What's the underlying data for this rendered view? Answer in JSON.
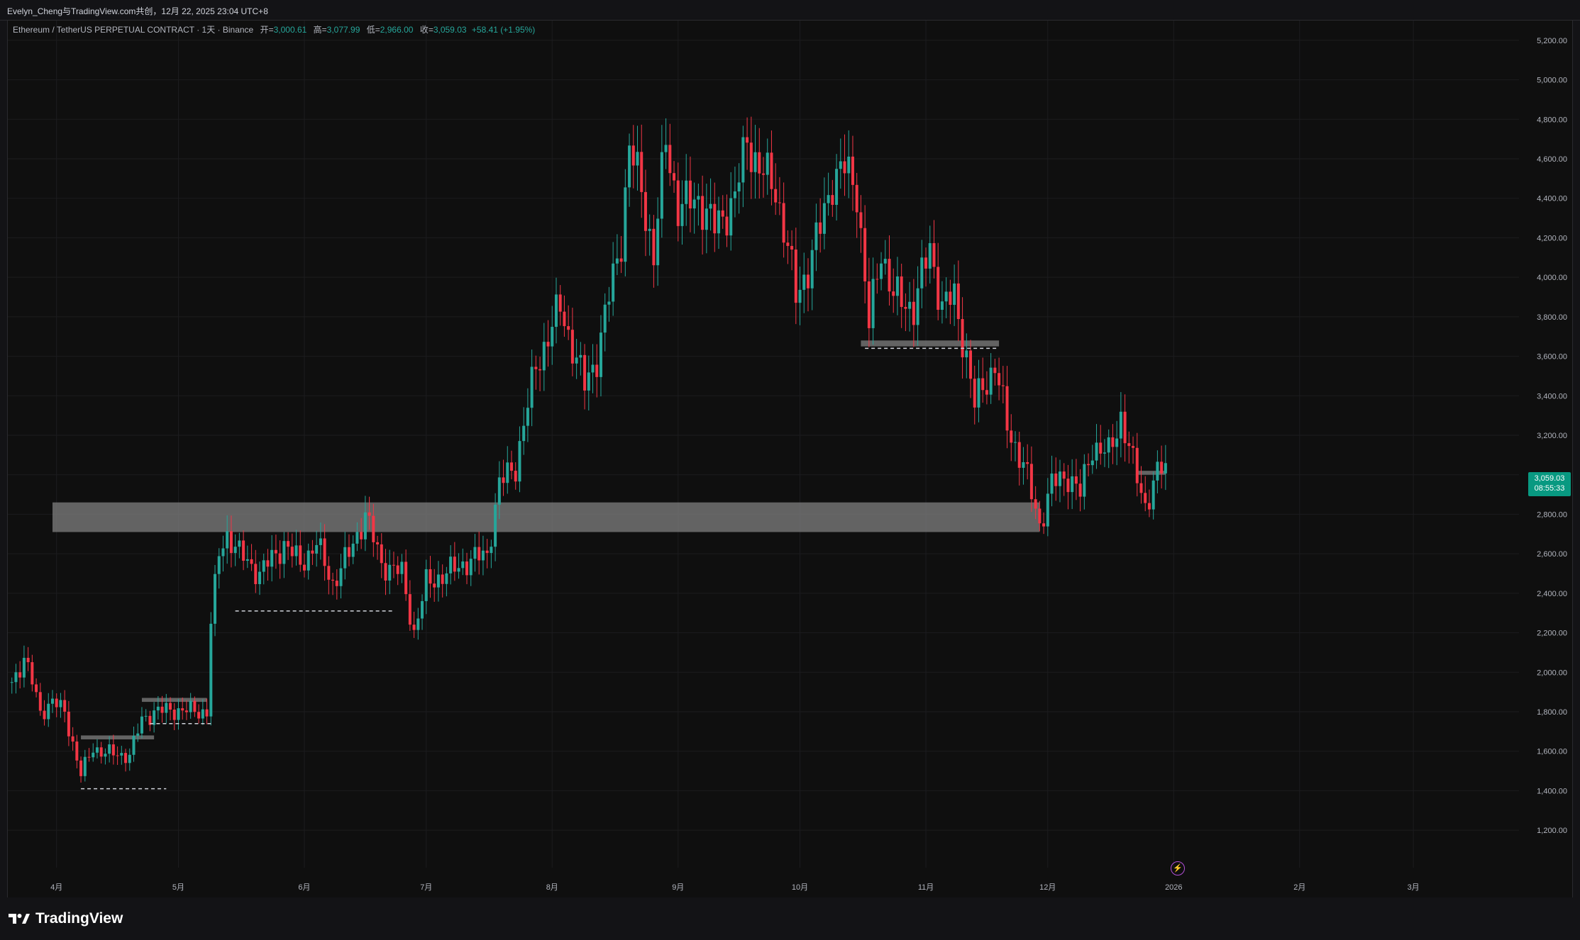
{
  "header": {
    "shared_by": "Evelyn_Cheng与TradingView.com共创，12月 22, 2025 23:04 UTC+8"
  },
  "legend": {
    "symbol": "Ethereum / TetherUS PERPETUAL CONTRACT · 1天 · Binance",
    "open_label": "开=",
    "open": "3,000.61",
    "high_label": "高=",
    "high": "3,077.99",
    "low_label": "低=",
    "low": "2,966.00",
    "close_label": "收=",
    "close": "3,059.03",
    "change": "+58.41 (+1.95%)"
  },
  "price_tag": {
    "price": "3,059.03",
    "countdown": "08:55:33"
  },
  "colors": {
    "up": "#26a69a",
    "down": "#f23645",
    "background": "#0f0f0f",
    "zone": "#808080"
  },
  "icons": {
    "flash": "lightning-circle-icon",
    "logo": "tradingview-logo-icon"
  },
  "brand": {
    "name": "TradingView"
  },
  "chart_data": {
    "type": "candlestick",
    "x_axis": {
      "ticks": [
        {
          "label": "4月",
          "day": 0
        },
        {
          "label": "5月",
          "day": 30
        },
        {
          "label": "6月",
          "day": 61
        },
        {
          "label": "7月",
          "day": 91
        },
        {
          "label": "8月",
          "day": 122
        },
        {
          "label": "9月",
          "day": 153
        },
        {
          "label": "10月",
          "day": 183
        },
        {
          "label": "11月",
          "day": 214
        },
        {
          "label": "12月",
          "day": 244
        },
        {
          "label": "2026",
          "day": 275
        },
        {
          "label": "2月",
          "day": 306
        },
        {
          "label": "3月",
          "day": 334
        }
      ],
      "range": [
        -12,
        360
      ]
    },
    "y_axis": {
      "ticks": [
        "1,200.00",
        "1,400.00",
        "1,600.00",
        "1,800.00",
        "2,000.00",
        "2,200.00",
        "2,400.00",
        "2,600.00",
        "2,800.00",
        "3,000.00",
        "3,200.00",
        "3,400.00",
        "3,600.00",
        "3,800.00",
        "4,000.00",
        "4,200.00",
        "4,400.00",
        "4,600.00",
        "4,800.00",
        "5,000.00",
        "5,200.00"
      ],
      "range": [
        1100,
        5300
      ]
    },
    "anchors": [
      {
        "day": -11,
        "close": 1950
      },
      {
        "day": -8,
        "close": 2070
      },
      {
        "day": -6,
        "close": 1950
      },
      {
        "day": -4,
        "close": 1800
      },
      {
        "day": -1,
        "close": 1850
      },
      {
        "day": 2,
        "close": 1800
      },
      {
        "day": 6,
        "close": 1480
      },
      {
        "day": 9,
        "close": 1620
      },
      {
        "day": 12,
        "close": 1590
      },
      {
        "day": 18,
        "close": 1580
      },
      {
        "day": 21,
        "close": 1760
      },
      {
        "day": 24,
        "close": 1800
      },
      {
        "day": 28,
        "close": 1810
      },
      {
        "day": 37,
        "close": 1800
      },
      {
        "day": 38,
        "close": 2250
      },
      {
        "day": 40,
        "close": 2600
      },
      {
        "day": 42,
        "close": 2700
      },
      {
        "day": 45,
        "close": 2600
      },
      {
        "day": 50,
        "close": 2500
      },
      {
        "day": 56,
        "close": 2650
      },
      {
        "day": 60,
        "close": 2550
      },
      {
        "day": 64,
        "close": 2650
      },
      {
        "day": 68,
        "close": 2450
      },
      {
        "day": 72,
        "close": 2600
      },
      {
        "day": 76,
        "close": 2800
      },
      {
        "day": 80,
        "close": 2550
      },
      {
        "day": 85,
        "close": 2500
      },
      {
        "day": 88,
        "close": 2200
      },
      {
        "day": 91,
        "close": 2450
      },
      {
        "day": 96,
        "close": 2500
      },
      {
        "day": 100,
        "close": 2550
      },
      {
        "day": 106,
        "close": 2600
      },
      {
        "day": 109,
        "close": 2950
      },
      {
        "day": 113,
        "close": 3050
      },
      {
        "day": 118,
        "close": 3550
      },
      {
        "day": 121,
        "close": 3700
      },
      {
        "day": 124,
        "close": 3850
      },
      {
        "day": 127,
        "close": 3650
      },
      {
        "day": 130,
        "close": 3450
      },
      {
        "day": 133,
        "close": 3600
      },
      {
        "day": 135,
        "close": 3800
      },
      {
        "day": 139,
        "close": 4200
      },
      {
        "day": 141,
        "close": 4650
      },
      {
        "day": 144,
        "close": 4450
      },
      {
        "day": 147,
        "close": 4100
      },
      {
        "day": 150,
        "close": 4700
      },
      {
        "day": 153,
        "close": 4350
      },
      {
        "day": 158,
        "close": 4400
      },
      {
        "day": 162,
        "close": 4250
      },
      {
        "day": 167,
        "close": 4400
      },
      {
        "day": 170,
        "close": 4700
      },
      {
        "day": 173,
        "close": 4550
      },
      {
        "day": 177,
        "close": 4450
      },
      {
        "day": 180,
        "close": 4150
      },
      {
        "day": 182,
        "close": 3900
      },
      {
        "day": 185,
        "close": 4050
      },
      {
        "day": 188,
        "close": 4250
      },
      {
        "day": 191,
        "close": 4500
      },
      {
        "day": 194,
        "close": 4550
      },
      {
        "day": 197,
        "close": 4450
      },
      {
        "day": 200,
        "close": 3750
      },
      {
        "day": 203,
        "close": 4150
      },
      {
        "day": 206,
        "close": 3900
      },
      {
        "day": 211,
        "close": 3850
      },
      {
        "day": 215,
        "close": 4150
      },
      {
        "day": 218,
        "close": 3850
      },
      {
        "day": 221,
        "close": 3900
      },
      {
        "day": 224,
        "close": 3600
      },
      {
        "day": 226,
        "close": 3350
      },
      {
        "day": 228,
        "close": 3450
      },
      {
        "day": 231,
        "close": 3550
      },
      {
        "day": 234,
        "close": 3250
      },
      {
        "day": 238,
        "close": 3050
      },
      {
        "day": 242,
        "close": 2750
      },
      {
        "day": 245,
        "close": 2950
      },
      {
        "day": 249,
        "close": 3000
      },
      {
        "day": 252,
        "close": 2900
      },
      {
        "day": 255,
        "close": 3150
      },
      {
        "day": 259,
        "close": 3100
      },
      {
        "day": 262,
        "close": 3300
      },
      {
        "day": 265,
        "close": 3050
      },
      {
        "day": 268,
        "close": 2850
      },
      {
        "day": 271,
        "close": 3000
      },
      {
        "day": 273,
        "close": 3059.03
      }
    ],
    "zones": [
      {
        "from_day": -1,
        "to_day": 242,
        "low": 2710,
        "high": 2860
      },
      {
        "from_day": 198,
        "to_day": 232,
        "low": 3650,
        "high": 3680
      },
      {
        "from_day": 6,
        "to_day": 24,
        "low": 1660,
        "high": 1680
      },
      {
        "from_day": 21,
        "to_day": 37,
        "low": 1850,
        "high": 1870
      },
      {
        "from_day": 266,
        "to_day": 273,
        "low": 3000,
        "high": 3020
      }
    ],
    "dashed_levels": [
      {
        "from_day": 6,
        "to_day": 27,
        "price": 1410
      },
      {
        "from_day": 23,
        "to_day": 38,
        "price": 1740
      },
      {
        "from_day": 44,
        "to_day": 83,
        "price": 2310
      },
      {
        "from_day": 199,
        "to_day": 232,
        "price": 3640
      }
    ]
  }
}
